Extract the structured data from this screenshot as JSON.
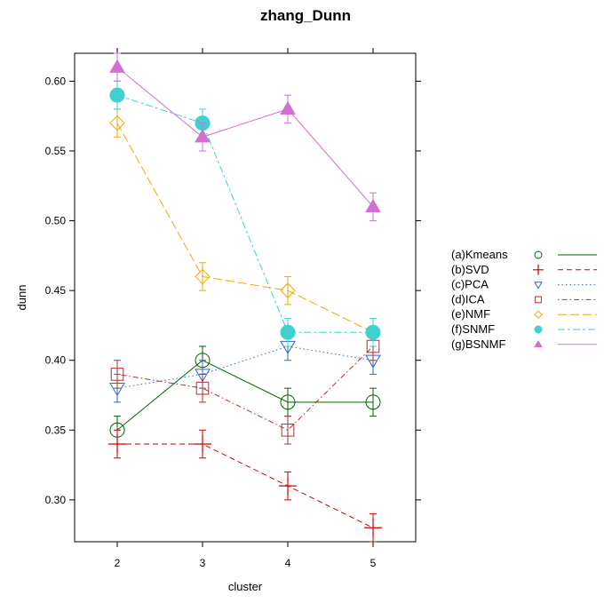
{
  "chart_data": {
    "type": "line",
    "title": "zhang_Dunn",
    "xlabel": "cluster",
    "ylabel": "dunn",
    "x": [
      2,
      3,
      4,
      5
    ],
    "xlim": [
      1.5,
      5.5
    ],
    "ylim": [
      0.27,
      0.62
    ],
    "x_ticks": [
      2,
      3,
      4,
      5
    ],
    "y_ticks": [
      0.3,
      0.35,
      0.4,
      0.45,
      0.5,
      0.55,
      0.6
    ],
    "y_tick_labels": [
      "0.30",
      "0.35",
      "0.40",
      "0.45",
      "0.50",
      "0.55",
      "0.60"
    ],
    "grid": false,
    "legend_position": "right",
    "error_bar_halfwidth": 0.01,
    "series": [
      {
        "name": "(a)Kmeans",
        "values": [
          0.35,
          0.4,
          0.37,
          0.37
        ],
        "color": "#006400",
        "marker": "circle",
        "dash": "solid"
      },
      {
        "name": "(b)SVD",
        "values": [
          0.34,
          0.34,
          0.31,
          0.28
        ],
        "color": "#cc0000",
        "marker": "plus",
        "dash": "dashed"
      },
      {
        "name": "(c)PCA",
        "values": [
          0.38,
          0.39,
          0.41,
          0.4
        ],
        "color": "#3366cc",
        "marker": "triangle-down",
        "dash": "dotted"
      },
      {
        "name": "(d)ICA",
        "values": [
          0.39,
          0.38,
          0.35,
          0.41
        ],
        "color": "#aa3333",
        "marker": "square",
        "dash": "dotdash"
      },
      {
        "name": "(e)NMF",
        "values": [
          0.57,
          0.46,
          0.45,
          0.42
        ],
        "color": "#f0a800",
        "marker": "diamond",
        "dash": "longdash"
      },
      {
        "name": "(f)SNMF",
        "values": [
          0.59,
          0.57,
          0.42,
          0.42
        ],
        "color": "#40d0d0",
        "marker": "filled-circle",
        "dash": "twodash"
      },
      {
        "name": "(g)BSNMF",
        "values": [
          0.61,
          0.56,
          0.58,
          0.51
        ],
        "color": "#d070d0",
        "marker": "filled-triangle-up",
        "dash": "solid"
      }
    ]
  }
}
